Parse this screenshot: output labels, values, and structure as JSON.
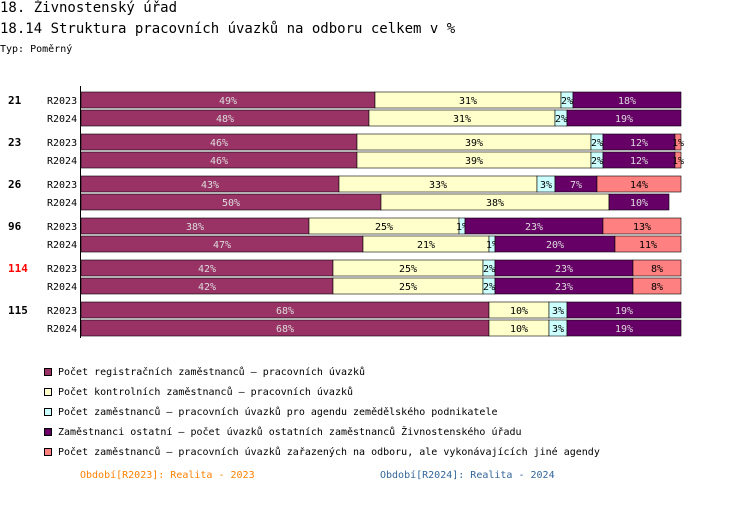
{
  "header": {
    "title": "18. Živnostenský úřad",
    "subtitle": "18.14 Struktura pracovních úvazků na odboru celkem v %",
    "type_label": "Typ: Poměrný"
  },
  "colors": {
    "registracni": "#993366",
    "kontrolni": "#FFFFCC",
    "zemedelsky": "#CCFFFF",
    "ostatni": "#660066",
    "jine": "#FF8080",
    "highlight_group": "#FF0000",
    "period_2023": "#FF8000",
    "period_2024": "#336699"
  },
  "chart_data": {
    "type": "bar",
    "orientation": "horizontal",
    "stacked": "percent",
    "xlim": [
      0,
      100
    ],
    "series": [
      {
        "key": "registracni",
        "name": "Počet registračních zaměstnanců – pracovních úvazků"
      },
      {
        "key": "kontrolni",
        "name": "Počet kontrolních zaměstnanců – pracovních úvazků"
      },
      {
        "key": "zemedelsky",
        "name": "Počet zaměstnanců – pracovních úvazků pro agendu zemědělského podnikatele"
      },
      {
        "key": "ostatni",
        "name": "Zaměstnanci ostatní – počet úvazků ostatních zaměstnanců Živnostenského úřadu"
      },
      {
        "key": "jine",
        "name": "Počet zaměstnanců – pracovních úvazků zařazených na odboru, ale vykonávajících jiné agendy"
      }
    ],
    "groups": [
      {
        "id": "21",
        "highlight": false,
        "rows": [
          {
            "period": "R2023",
            "values": [
              49,
              31,
              2,
              18,
              0
            ]
          },
          {
            "period": "R2024",
            "values": [
              48,
              31,
              2,
              19,
              0
            ]
          }
        ]
      },
      {
        "id": "23",
        "highlight": false,
        "rows": [
          {
            "period": "R2023",
            "values": [
              46,
              39,
              2,
              12,
              1
            ]
          },
          {
            "period": "R2024",
            "values": [
              46,
              39,
              2,
              12,
              1
            ]
          }
        ]
      },
      {
        "id": "26",
        "highlight": false,
        "rows": [
          {
            "period": "R2023",
            "values": [
              43,
              33,
              3,
              7,
              14
            ]
          },
          {
            "period": "R2024",
            "values": [
              50,
              38,
              0,
              10,
              0
            ]
          }
        ]
      },
      {
        "id": "96",
        "highlight": false,
        "rows": [
          {
            "period": "R2023",
            "values": [
              38,
              25,
              1,
              23,
              13
            ]
          },
          {
            "period": "R2024",
            "values": [
              47,
              21,
              1,
              20,
              11
            ]
          }
        ]
      },
      {
        "id": "114",
        "highlight": true,
        "rows": [
          {
            "period": "R2023",
            "values": [
              42,
              25,
              2,
              23,
              8
            ]
          },
          {
            "period": "R2024",
            "values": [
              42,
              25,
              2,
              23,
              8
            ]
          }
        ]
      },
      {
        "id": "115",
        "highlight": false,
        "rows": [
          {
            "period": "R2023",
            "values": [
              68,
              10,
              3,
              19,
              0
            ]
          },
          {
            "period": "R2024",
            "values": [
              68,
              10,
              3,
              19,
              0
            ]
          }
        ]
      }
    ],
    "legend_position": "bottom",
    "periods": [
      {
        "key": "R2023",
        "label": "Období[R2023]: Realita - 2023"
      },
      {
        "key": "R2024",
        "label": "Období[R2024]: Realita - 2024"
      }
    ]
  }
}
